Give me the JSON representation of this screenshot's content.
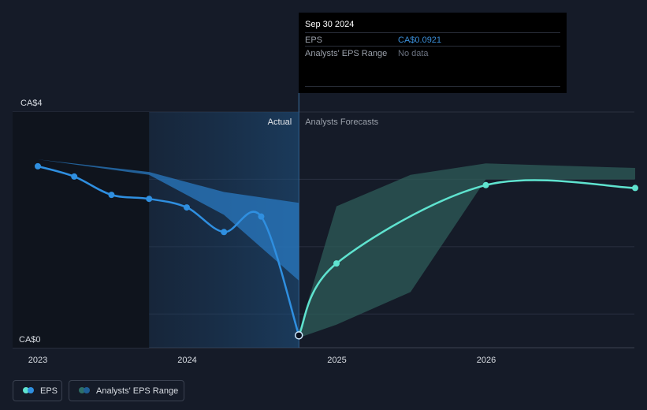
{
  "tooltip": {
    "date": "Sep 30 2024",
    "rows": [
      {
        "label": "EPS",
        "value": "CA$0.0921",
        "color": "#3b8fd9"
      },
      {
        "label": "Analysts' EPS Range",
        "value": "No data",
        "color": "#6b7280"
      }
    ]
  },
  "legend": {
    "eps_label": "EPS",
    "range_label": "Analysts' EPS Range"
  },
  "colors": {
    "background": "#151b28",
    "actual": "#2f8fe0",
    "forecast": "#5fe3cf",
    "range_fill": "#2e5c58",
    "past_range_fill": "#2979c2"
  },
  "chart_data": {
    "type": "line",
    "y_tick_labels": [
      "CA$4",
      "CA$0"
    ],
    "ylim": [
      0,
      4
    ],
    "x_tick_labels": [
      "2023",
      "2024",
      "2025",
      "2026"
    ],
    "divider_labels": {
      "left": "Actual",
      "right": "Analysts Forecasts"
    },
    "series": [
      {
        "name": "EPS",
        "kind": "actual",
        "points": [
          [
            "2023-01-01",
            3.05
          ],
          [
            "2023-03-31",
            2.87
          ],
          [
            "2023-06-30",
            2.55
          ],
          [
            "2023-09-30",
            2.48
          ],
          [
            "2023-12-31",
            2.33
          ],
          [
            "2024-03-31",
            1.9
          ],
          [
            "2024-06-30",
            2.17
          ],
          [
            "2024-09-30",
            0.0921
          ]
        ]
      },
      {
        "name": "EPS",
        "kind": "forecast",
        "points": [
          [
            "2024-09-30",
            0.0921
          ],
          [
            "2024-12-31",
            1.35
          ],
          [
            "2025-12-31",
            2.72
          ],
          [
            "2026-12-31",
            2.67
          ]
        ]
      }
    ],
    "past_range": {
      "name": "Analysts' EPS Range",
      "upper": [
        [
          "2023-01-01",
          3.17
        ],
        [
          "2023-09-30",
          2.95
        ],
        [
          "2024-03-31",
          2.6
        ],
        [
          "2024-09-30",
          2.41
        ]
      ],
      "lower": [
        [
          "2023-01-01",
          3.17
        ],
        [
          "2023-09-30",
          2.9
        ],
        [
          "2024-03-31",
          2.2
        ],
        [
          "2024-09-30",
          1.05
        ]
      ]
    },
    "forecast_range": {
      "name": "Analysts' EPS Range",
      "upper": [
        [
          "2024-09-30",
          0.15
        ],
        [
          "2024-12-31",
          2.35
        ],
        [
          "2025-06-30",
          2.9
        ],
        [
          "2025-12-31",
          3.1
        ],
        [
          "2026-12-31",
          3.02
        ]
      ],
      "lower": [
        [
          "2024-09-30",
          0.05
        ],
        [
          "2024-12-31",
          0.28
        ],
        [
          "2025-06-30",
          0.85
        ],
        [
          "2025-12-31",
          2.82
        ],
        [
          "2026-12-31",
          2.82
        ]
      ]
    },
    "highlight_date": "2024-09-30",
    "grid": true
  }
}
